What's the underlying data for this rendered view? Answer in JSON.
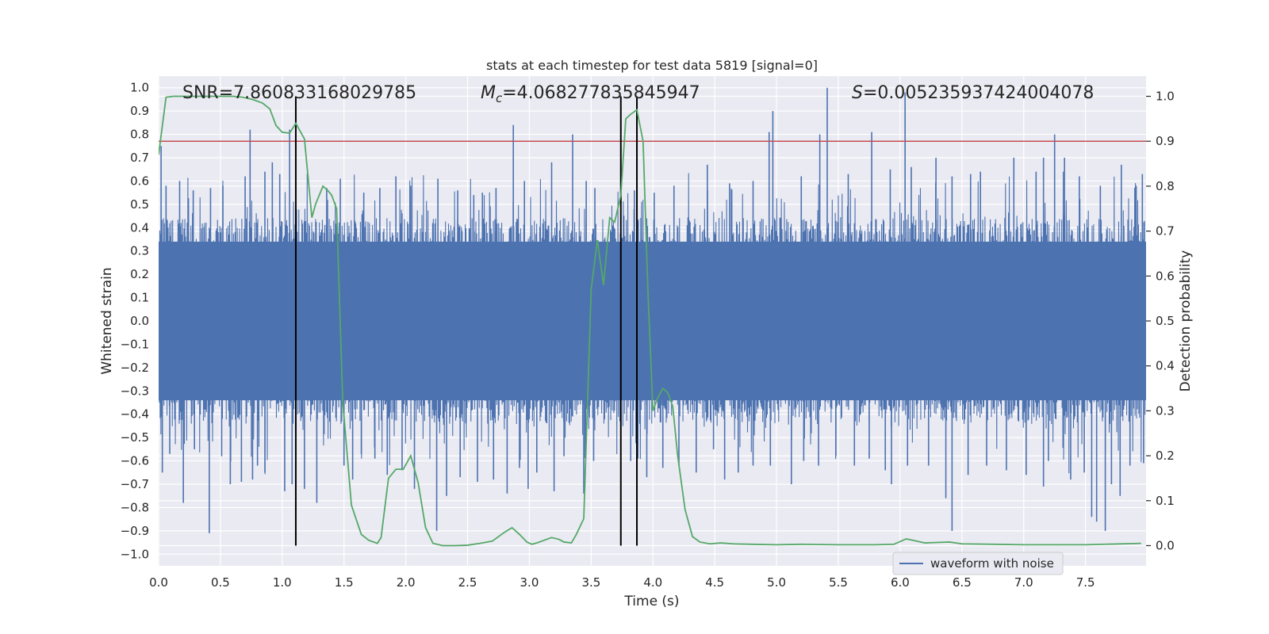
{
  "chart_data": {
    "type": "line",
    "title": "stats at each timestep for test data 5819 [signal=0]",
    "xlabel": "Time (s)",
    "ylabel_left": "Whitened strain",
    "ylabel_right": "Detection probability",
    "xlim": [
      0.0,
      7.99
    ],
    "ylim_left": [
      -1.05,
      1.05
    ],
    "ylim_right": [
      -0.045,
      1.045
    ],
    "x_ticks": [
      "0.0",
      "0.5",
      "1.0",
      "1.5",
      "2.0",
      "2.5",
      "3.0",
      "3.5",
      "4.0",
      "4.5",
      "5.0",
      "5.5",
      "6.0",
      "6.5",
      "7.0",
      "7.5"
    ],
    "x_tick_values": [
      0.0,
      0.5,
      1.0,
      1.5,
      2.0,
      2.5,
      3.0,
      3.5,
      4.0,
      4.5,
      5.0,
      5.5,
      6.0,
      6.5,
      7.0,
      7.5
    ],
    "y_ticks_left": [
      "1.0",
      "0.9",
      "0.8",
      "0.7",
      "0.6",
      "0.5",
      "0.4",
      "0.3",
      "0.2",
      "0.1",
      "0.0",
      "−0.1",
      "−0.2",
      "−0.3",
      "−0.4",
      "−0.5",
      "−0.6",
      "−0.7",
      "−0.8",
      "−0.9",
      "−1.0"
    ],
    "y_tick_values_left": [
      1.0,
      0.9,
      0.8,
      0.7,
      0.6,
      0.5,
      0.4,
      0.3,
      0.2,
      0.1,
      0.0,
      -0.1,
      -0.2,
      -0.3,
      -0.4,
      -0.5,
      -0.6,
      -0.7,
      -0.8,
      -0.9,
      -1.0
    ],
    "y_ticks_right": [
      "1.0",
      "0.9",
      "0.8",
      "0.7",
      "0.6",
      "0.5",
      "0.4",
      "0.3",
      "0.2",
      "0.1",
      "0.0"
    ],
    "y_tick_values_right": [
      1.0,
      0.9,
      0.8,
      0.7,
      0.6,
      0.5,
      0.4,
      0.3,
      0.2,
      0.1,
      0.0
    ],
    "annotations": {
      "snr": "SNR=7.860833168029785",
      "mc_symbol": "M",
      "mc_sub": "c",
      "mc_value": "=4.068277835845947",
      "s_symbol": "S",
      "s_value": "=0.005235937424004078"
    },
    "threshold": {
      "axis": "right",
      "y": 0.9,
      "color": "#c44e52"
    },
    "vertical_lines": {
      "x": [
        1.11,
        3.74,
        3.87
      ],
      "color": "#000000"
    },
    "series": [
      {
        "name": "waveform with noise",
        "axis": "left",
        "color": "#4c72b0",
        "band": {
          "dense_min": -0.34,
          "dense_max": 0.34,
          "typical_peak": 0.5
        },
        "spikes_up": [
          [
            0.02,
            0.75
          ],
          [
            0.06,
            0.58
          ],
          [
            0.17,
            0.6
          ],
          [
            0.28,
            0.56
          ],
          [
            0.42,
            0.57
          ],
          [
            0.52,
            0.58
          ],
          [
            0.7,
            0.62
          ],
          [
            0.74,
            0.82
          ],
          [
            0.86,
            0.64
          ],
          [
            0.92,
            0.68
          ],
          [
            0.98,
            0.63
          ],
          [
            1.06,
            0.82
          ],
          [
            1.36,
            0.57
          ],
          [
            1.47,
            0.61
          ],
          [
            1.66,
            0.55
          ],
          [
            1.79,
            0.57
          ],
          [
            1.92,
            0.62
          ],
          [
            2.04,
            0.58
          ],
          [
            2.26,
            0.61
          ],
          [
            2.42,
            0.56
          ],
          [
            2.55,
            0.54
          ],
          [
            2.62,
            0.55
          ],
          [
            2.73,
            0.57
          ],
          [
            2.87,
            0.84
          ],
          [
            2.96,
            0.6
          ],
          [
            3.18,
            0.68
          ],
          [
            3.35,
            0.8
          ],
          [
            3.46,
            0.6
          ],
          [
            3.53,
            0.57
          ],
          [
            3.85,
            0.56
          ],
          [
            4.01,
            0.55
          ],
          [
            4.17,
            0.58
          ],
          [
            4.44,
            0.67
          ],
          [
            4.62,
            0.59
          ],
          [
            4.81,
            0.6
          ],
          [
            4.94,
            0.81
          ],
          [
            4.97,
            0.9
          ],
          [
            5.2,
            0.62
          ],
          [
            5.35,
            0.8
          ],
          [
            5.41,
            1.0
          ],
          [
            5.58,
            0.63
          ],
          [
            5.77,
            0.81
          ],
          [
            5.92,
            0.65
          ],
          [
            6.04,
            0.98
          ],
          [
            6.09,
            0.66
          ],
          [
            6.29,
            0.7
          ],
          [
            6.42,
            0.62
          ],
          [
            6.57,
            0.63
          ],
          [
            6.65,
            0.64
          ],
          [
            6.92,
            0.7
          ],
          [
            7.1,
            0.64
          ],
          [
            7.16,
            0.7
          ],
          [
            7.25,
            0.8
          ],
          [
            7.33,
            0.7
          ],
          [
            7.45,
            0.62
          ],
          [
            7.62,
            0.58
          ],
          [
            7.79,
            0.67
          ],
          [
            7.91,
            0.58
          ],
          [
            7.96,
            0.63
          ]
        ],
        "spikes_down": [
          [
            0.03,
            -0.65
          ],
          [
            0.09,
            -0.57
          ],
          [
            0.2,
            -0.78
          ],
          [
            0.29,
            -0.55
          ],
          [
            0.41,
            -0.91
          ],
          [
            0.51,
            -0.58
          ],
          [
            0.58,
            -0.7
          ],
          [
            0.67,
            -0.69
          ],
          [
            0.76,
            -0.68
          ],
          [
            0.8,
            -0.62
          ],
          [
            0.86,
            -0.65
          ],
          [
            1.02,
            -0.73
          ],
          [
            1.08,
            -0.7
          ],
          [
            1.18,
            -0.72
          ],
          [
            1.28,
            -0.78
          ],
          [
            1.5,
            -0.62
          ],
          [
            1.57,
            -0.68
          ],
          [
            1.64,
            -0.57
          ],
          [
            1.75,
            -0.59
          ],
          [
            1.85,
            -0.66
          ],
          [
            1.97,
            -0.64
          ],
          [
            2.07,
            -0.72
          ],
          [
            2.25,
            -0.9
          ],
          [
            2.33,
            -0.75
          ],
          [
            2.44,
            -0.67
          ],
          [
            2.58,
            -0.69
          ],
          [
            2.71,
            -0.68
          ],
          [
            2.82,
            -0.74
          ],
          [
            2.92,
            -0.63
          ],
          [
            2.99,
            -0.72
          ],
          [
            3.06,
            -0.65
          ],
          [
            3.2,
            -0.73
          ],
          [
            3.28,
            -0.58
          ],
          [
            3.44,
            -0.74
          ],
          [
            3.52,
            -0.6
          ],
          [
            3.82,
            -0.6
          ],
          [
            3.95,
            -0.67
          ],
          [
            4.08,
            -0.63
          ],
          [
            4.21,
            -0.62
          ],
          [
            4.35,
            -0.65
          ],
          [
            4.49,
            -0.55
          ],
          [
            4.58,
            -0.68
          ],
          [
            4.69,
            -0.65
          ],
          [
            4.81,
            -0.62
          ],
          [
            4.95,
            -0.62
          ],
          [
            5.12,
            -0.7
          ],
          [
            5.22,
            -0.6
          ],
          [
            5.34,
            -0.62
          ],
          [
            5.48,
            -0.58
          ],
          [
            5.63,
            -0.62
          ],
          [
            5.75,
            -0.59
          ],
          [
            5.88,
            -0.64
          ],
          [
            5.93,
            -0.7
          ],
          [
            6.06,
            -0.62
          ],
          [
            6.23,
            -0.62
          ],
          [
            6.37,
            -0.76
          ],
          [
            6.42,
            -0.9
          ],
          [
            6.55,
            -0.66
          ],
          [
            6.7,
            -0.62
          ],
          [
            6.86,
            -0.64
          ],
          [
            7.02,
            -0.66
          ],
          [
            7.16,
            -0.71
          ],
          [
            7.2,
            -0.6
          ],
          [
            7.38,
            -0.68
          ],
          [
            7.49,
            -0.65
          ],
          [
            7.55,
            -0.84
          ],
          [
            7.59,
            -0.86
          ],
          [
            7.66,
            -0.9
          ],
          [
            7.71,
            -0.7
          ],
          [
            7.78,
            -0.75
          ],
          [
            7.86,
            -0.62
          ],
          [
            7.97,
            -0.61
          ]
        ]
      },
      {
        "name": "",
        "axis": "right",
        "color": "#55a868",
        "x": [
          0.0,
          0.06,
          0.12,
          0.2,
          0.3,
          0.4,
          0.5,
          0.6,
          0.68,
          0.76,
          0.84,
          0.9,
          0.95,
          1.0,
          1.06,
          1.11,
          1.18,
          1.24,
          1.27,
          1.33,
          1.37,
          1.4,
          1.44,
          1.49,
          1.56,
          1.64,
          1.7,
          1.77,
          1.8,
          1.86,
          1.92,
          1.98,
          2.04,
          2.1,
          2.16,
          2.22,
          2.3,
          2.4,
          2.5,
          2.6,
          2.7,
          2.8,
          2.86,
          2.92,
          2.98,
          3.02,
          3.06,
          3.12,
          3.18,
          3.24,
          3.28,
          3.34,
          3.38,
          3.44,
          3.5,
          3.55,
          3.6,
          3.65,
          3.69,
          3.74,
          3.78,
          3.82,
          3.87,
          3.92,
          3.96,
          4.0,
          4.04,
          4.08,
          4.12,
          4.16,
          4.2,
          4.26,
          4.32,
          4.38,
          4.46,
          4.55,
          4.65,
          4.8,
          5.0,
          5.2,
          5.5,
          5.8,
          5.95,
          6.05,
          6.1,
          6.2,
          6.3,
          6.4,
          6.5,
          7.0,
          7.5,
          7.95
        ],
        "y": [
          0.87,
          0.998,
          1.0,
          1.0,
          1.0,
          1.0,
          1.0,
          1.0,
          0.998,
          0.993,
          0.985,
          0.972,
          0.935,
          0.92,
          0.918,
          0.94,
          0.905,
          0.73,
          0.76,
          0.8,
          0.79,
          0.78,
          0.75,
          0.32,
          0.09,
          0.025,
          0.012,
          0.005,
          0.018,
          0.15,
          0.17,
          0.17,
          0.2,
          0.14,
          0.04,
          0.005,
          0.0,
          0.0,
          0.001,
          0.005,
          0.01,
          0.03,
          0.04,
          0.025,
          0.008,
          0.003,
          0.006,
          0.012,
          0.018,
          0.014,
          0.008,
          0.006,
          0.025,
          0.06,
          0.57,
          0.68,
          0.58,
          0.73,
          0.72,
          0.78,
          0.95,
          0.96,
          0.97,
          0.9,
          0.56,
          0.3,
          0.33,
          0.35,
          0.34,
          0.31,
          0.2,
          0.08,
          0.02,
          0.008,
          0.004,
          0.006,
          0.004,
          0.003,
          0.002,
          0.003,
          0.002,
          0.002,
          0.003,
          0.015,
          0.012,
          0.006,
          0.007,
          0.008,
          0.004,
          0.002,
          0.002,
          0.005
        ]
      }
    ],
    "legend": {
      "position": "lower-center-right",
      "entries": [
        "waveform with noise"
      ]
    },
    "grid": true,
    "colors": {
      "axes_bg": "#eaeaf2",
      "grid": "#ffffff",
      "waveform": "#4c72b0",
      "probability": "#55a868",
      "threshold": "#c44e52",
      "markers": "#000000"
    }
  }
}
